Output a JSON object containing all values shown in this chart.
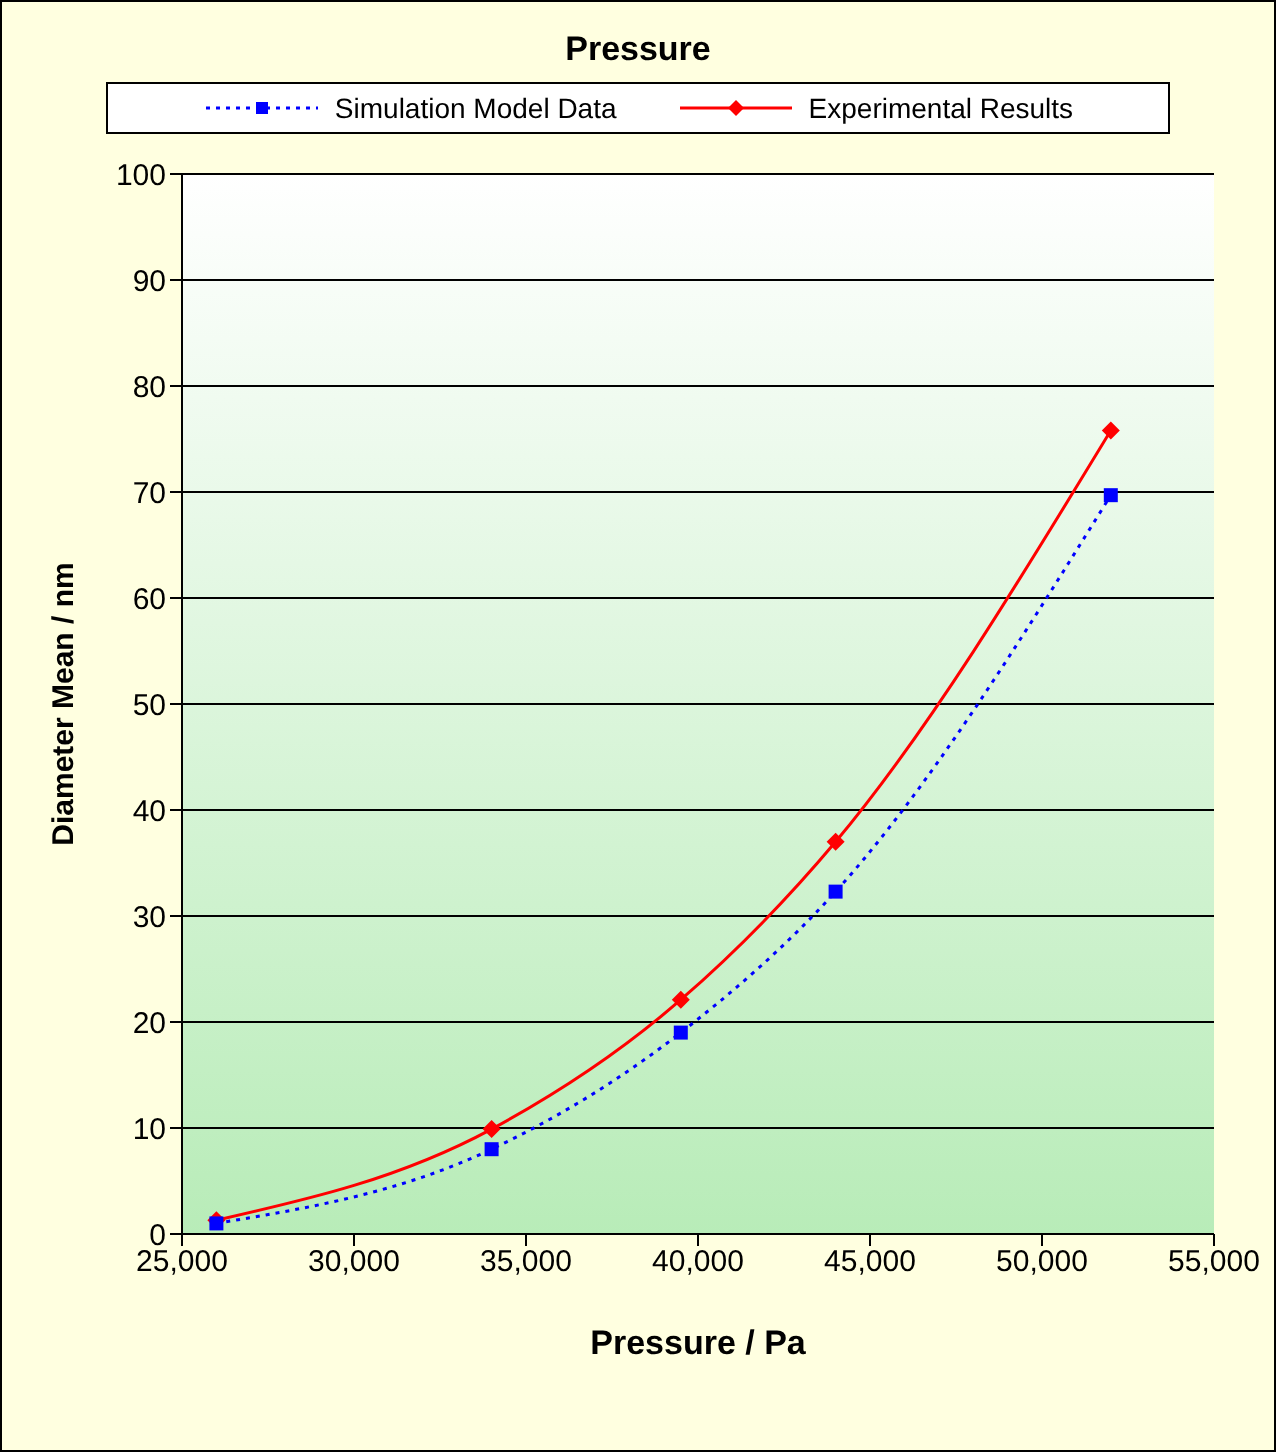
{
  "chart_data": {
    "type": "line",
    "title": "Pressure",
    "xlabel": "Pressure / Pa",
    "ylabel": "Diameter Mean / nm",
    "x": [
      26000,
      34000,
      39500,
      44000,
      52000
    ],
    "series": [
      {
        "name": "Simulation Model Data",
        "color": "#0000ff",
        "marker": "square",
        "line_style": "dotted",
        "values": [
          1,
          8,
          19,
          32.3,
          69.7
        ]
      },
      {
        "name": "Experimental Results",
        "color": "#ff0000",
        "marker": "diamond",
        "line_style": "solid",
        "values": [
          1.3,
          9.9,
          22.1,
          37,
          75.8
        ]
      }
    ],
    "xlim": [
      25000,
      55000
    ],
    "xticks": [
      {
        "value": 25000,
        "label": "25,000"
      },
      {
        "value": 30000,
        "label": "30,000"
      },
      {
        "value": 35000,
        "label": "35,000"
      },
      {
        "value": 40000,
        "label": "40,000"
      },
      {
        "value": 45000,
        "label": "45,000"
      },
      {
        "value": 50000,
        "label": "50,000"
      },
      {
        "value": 55000,
        "label": "55,000"
      }
    ],
    "ylim": [
      0,
      100
    ],
    "yticks": [
      0,
      10,
      20,
      30,
      40,
      50,
      60,
      70,
      80,
      90,
      100
    ],
    "grid": "y",
    "legend": "top"
  }
}
